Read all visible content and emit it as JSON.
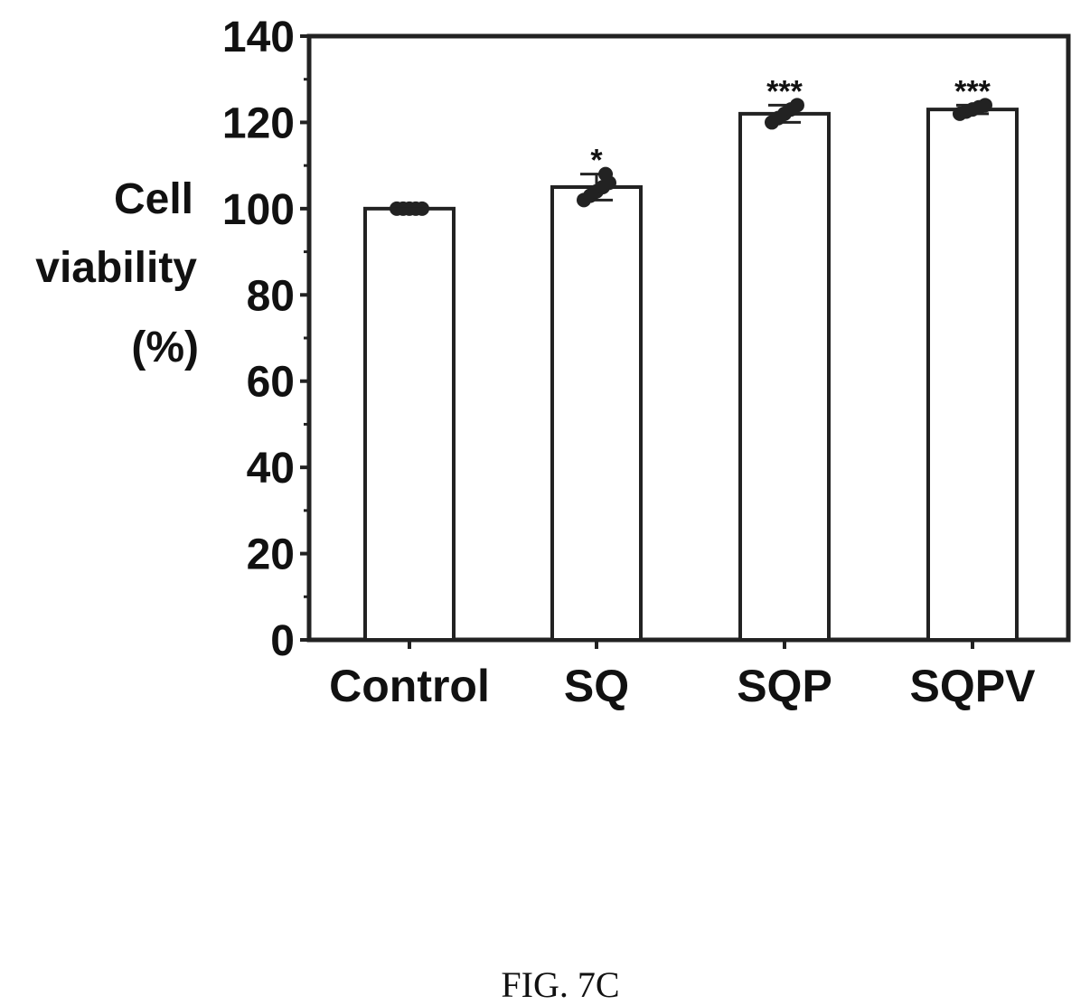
{
  "chart_data": {
    "type": "bar",
    "categories": [
      "Control",
      "SQ",
      "SQP",
      "SQPV"
    ],
    "values": [
      100,
      105,
      122,
      123
    ],
    "significance": [
      "",
      "*",
      "***",
      "***"
    ],
    "points": [
      [
        100,
        100,
        100,
        100,
        100
      ],
      [
        102,
        103,
        104,
        105,
        106,
        108
      ],
      [
        120,
        121,
        122,
        123,
        124
      ],
      [
        122,
        122.5,
        123,
        123.5,
        124
      ]
    ],
    "ylabel_lines": [
      "Cell",
      "viability",
      "(%)"
    ],
    "yticks": [
      0,
      20,
      40,
      60,
      80,
      100,
      120,
      140
    ],
    "ylim": [
      0,
      140
    ],
    "grid": false,
    "bar_fill": "#ffffff",
    "bar_stroke": "#222222",
    "point_color": "#222222"
  },
  "caption": "FIG. 7C"
}
